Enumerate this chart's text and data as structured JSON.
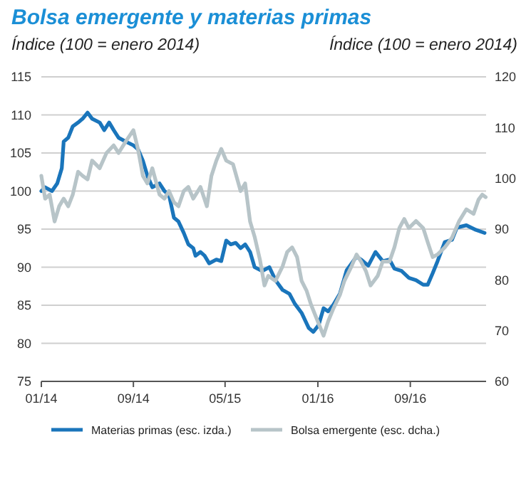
{
  "chart_data": {
    "type": "line",
    "title": "Bolsa emergente y materias primas",
    "ylabel": "Índice (100 = enero 2014)",
    "y2label": "Índice (100 = enero 2014)",
    "xlim": [
      "2014-01-01",
      "2017-03-20"
    ],
    "xticks": [
      {
        "value": "2014-01-01",
        "label": "01/14"
      },
      {
        "value": "2014-09-01",
        "label": "09/14"
      },
      {
        "value": "2015-05-01",
        "label": "05/15"
      },
      {
        "value": "2016-01-01",
        "label": "01/16"
      },
      {
        "value": "2016-09-01",
        "label": "09/16"
      }
    ],
    "ylim": [
      75,
      115
    ],
    "yticks": [
      75,
      80,
      85,
      90,
      95,
      100,
      105,
      110,
      115
    ],
    "y2lim": [
      60,
      120
    ],
    "y2ticks": [
      60,
      70,
      80,
      90,
      100,
      110,
      120
    ],
    "grid": "y",
    "legend": "bottom",
    "series": [
      {
        "name": "Materias primas (esc. izda.)",
        "color": "#1a75bb",
        "x": [
          "2014-01-01",
          "2014-01-11",
          "2014-01-29",
          "2014-02-12",
          "2014-02-24",
          "2014-03-01",
          "2014-03-13",
          "2014-03-25",
          "2014-04-08",
          "2014-04-20",
          "2014-05-03",
          "2014-05-15",
          "2014-06-04",
          "2014-06-16",
          "2014-06-29",
          "2014-07-11",
          "2014-07-24",
          "2014-08-12",
          "2014-09-01",
          "2014-09-13",
          "2014-09-26",
          "2014-10-08",
          "2014-10-21",
          "2014-11-09",
          "2014-11-22",
          "2014-12-04",
          "2014-12-17",
          "2014-12-29",
          "2015-01-12",
          "2015-01-24",
          "2015-02-06",
          "2015-02-12",
          "2015-02-25",
          "2015-03-08",
          "2015-03-20",
          "2015-04-08",
          "2015-04-21",
          "2015-05-04",
          "2015-05-16",
          "2015-05-29",
          "2015-06-11",
          "2015-06-23",
          "2015-07-06",
          "2015-07-18",
          "2015-08-07",
          "2015-08-26",
          "2015-09-11",
          "2015-09-30",
          "2015-10-18",
          "2015-11-01",
          "2015-11-19",
          "2015-12-08",
          "2015-12-20",
          "2016-01-03",
          "2016-01-16",
          "2016-01-28",
          "2016-02-10",
          "2016-02-28",
          "2016-03-17",
          "2016-03-30",
          "2016-04-12",
          "2016-04-24",
          "2016-05-13",
          "2016-06-01",
          "2016-06-20",
          "2016-07-08",
          "2016-07-21",
          "2016-08-09",
          "2016-08-28",
          "2016-09-16",
          "2016-10-05",
          "2016-10-17",
          "2016-10-30",
          "2016-11-12",
          "2016-12-01",
          "2016-12-20",
          "2017-01-02",
          "2017-01-27",
          "2017-02-21",
          "2017-03-16"
        ],
        "values": [
          100,
          100.5,
          100,
          101,
          103,
          106.5,
          107,
          108.5,
          109,
          109.5,
          110.3,
          109.5,
          109,
          108,
          109,
          108,
          107,
          106.5,
          106,
          105.5,
          104,
          102,
          100.5,
          101,
          100,
          99.5,
          96.5,
          96,
          94.5,
          93,
          92.5,
          91.5,
          92,
          91.5,
          90.5,
          91,
          90.8,
          93.5,
          93,
          93.2,
          92.5,
          93,
          92,
          90,
          89.5,
          90,
          88.3,
          87,
          86.5,
          85.2,
          84,
          82,
          81.5,
          82.4,
          84.6,
          84.2,
          85,
          86.5,
          89.6,
          90.5,
          91.4,
          91,
          90.2,
          92,
          90.8,
          91,
          89.8,
          89.5,
          88.6,
          88.3,
          87.7,
          87.7,
          89.2,
          90.8,
          93.3,
          93.6,
          95.2,
          95.5,
          94.9,
          94.5
        ]
      },
      {
        "name": "Bolsa emergente (esc. dcha.)",
        "color": "#b7c4c8",
        "axis": "y2",
        "x": [
          "2014-01-01",
          "2014-01-11",
          "2014-01-23",
          "2014-02-05",
          "2014-02-17",
          "2014-03-01",
          "2014-03-13",
          "2014-03-25",
          "2014-04-08",
          "2014-04-20",
          "2014-05-03",
          "2014-05-15",
          "2014-06-04",
          "2014-06-22",
          "2014-07-11",
          "2014-07-24",
          "2014-08-12",
          "2014-09-01",
          "2014-09-13",
          "2014-09-26",
          "2014-10-08",
          "2014-10-21",
          "2014-11-09",
          "2014-11-22",
          "2014-12-04",
          "2014-12-17",
          "2014-12-29",
          "2015-01-12",
          "2015-01-24",
          "2015-02-06",
          "2015-02-25",
          "2015-03-14",
          "2015-03-26",
          "2015-04-08",
          "2015-04-21",
          "2015-05-04",
          "2015-05-22",
          "2015-06-11",
          "2015-06-23",
          "2015-07-06",
          "2015-07-18",
          "2015-08-01",
          "2015-08-13",
          "2015-08-23",
          "2015-09-11",
          "2015-09-30",
          "2015-10-12",
          "2015-10-25",
          "2015-11-07",
          "2015-11-19",
          "2015-12-02",
          "2015-12-14",
          "2016-01-03",
          "2016-01-16",
          "2016-01-28",
          "2016-02-10",
          "2016-02-28",
          "2016-03-11",
          "2016-03-30",
          "2016-04-12",
          "2016-04-24",
          "2016-05-07",
          "2016-05-19",
          "2016-06-07",
          "2016-06-20",
          "2016-07-08",
          "2016-07-21",
          "2016-08-03",
          "2016-08-16",
          "2016-08-28",
          "2016-09-16",
          "2016-10-05",
          "2016-10-17",
          "2016-10-30",
          "2016-11-12",
          "2016-12-01",
          "2016-12-20",
          "2017-01-08",
          "2017-01-27",
          "2017-02-15",
          "2017-02-28",
          "2017-03-10",
          "2017-03-19"
        ],
        "values": [
          100.5,
          96,
          96.8,
          91.5,
          94.5,
          96,
          94.5,
          96.8,
          101.3,
          100.5,
          99.8,
          103.5,
          102,
          105,
          106.5,
          105,
          107.3,
          109.5,
          105.8,
          100.5,
          99,
          102,
          96.8,
          96,
          97.5,
          95.3,
          94.5,
          97.5,
          98.3,
          96,
          98.3,
          94.5,
          100.5,
          103.5,
          105.8,
          103.5,
          102.8,
          97.5,
          99,
          91.5,
          88.5,
          84,
          78.9,
          80.8,
          79.8,
          82.7,
          85.5,
          86.4,
          84.5,
          79.8,
          77.9,
          75.1,
          71.4,
          69,
          71.8,
          74.2,
          77,
          79.8,
          82.7,
          85,
          83.6,
          81.7,
          78.9,
          80.8,
          83.6,
          83.6,
          86.4,
          90.2,
          92,
          90.2,
          91.6,
          90.2,
          87.4,
          84.5,
          85,
          86.4,
          88.3,
          91.6,
          93.9,
          93,
          95.8,
          96.8,
          96.3
        ]
      }
    ]
  }
}
